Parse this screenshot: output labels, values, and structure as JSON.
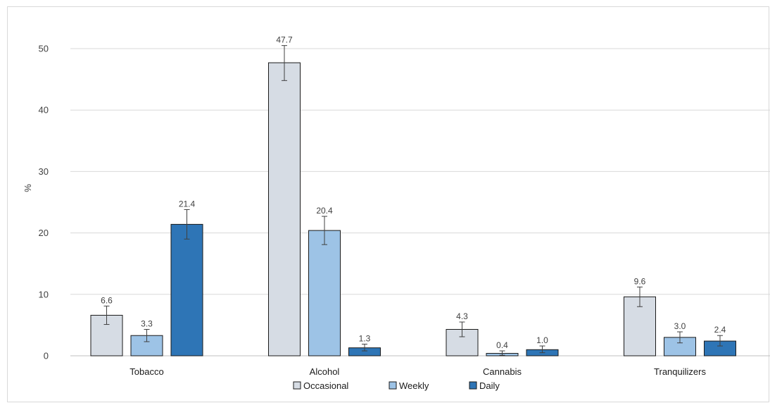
{
  "chart_data": {
    "type": "bar",
    "title": "",
    "xlabel": "",
    "ylabel": "%",
    "ylim": [
      0,
      55
    ],
    "yticks": [
      0,
      10,
      20,
      30,
      40,
      50
    ],
    "grid": true,
    "legend_position": "bottom",
    "categories": [
      "Tobacco",
      "Alcohol",
      "Cannabis",
      "Tranquilizers"
    ],
    "series": [
      {
        "name": "Occasional",
        "color": "#d6dce4",
        "values": [
          6.6,
          47.7,
          4.3,
          9.6
        ],
        "labels": [
          "6.6",
          "47.7",
          "4.3",
          "9.6"
        ],
        "error_low": [
          5.1,
          44.8,
          3.1,
          8.0
        ],
        "error_high": [
          8.1,
          50.5,
          5.5,
          11.2
        ]
      },
      {
        "name": "Weekly",
        "color": "#9dc3e6",
        "values": [
          3.3,
          20.4,
          0.4,
          3.0
        ],
        "labels": [
          "3.3",
          "20.4",
          "0.4",
          "3.0"
        ],
        "error_low": [
          2.3,
          18.1,
          0.1,
          2.1
        ],
        "error_high": [
          4.3,
          22.7,
          0.8,
          3.9
        ]
      },
      {
        "name": "Daily",
        "color": "#2e75b6",
        "values": [
          21.4,
          1.3,
          1.0,
          2.4
        ],
        "labels": [
          "21.4",
          "1.3",
          "1.0",
          "2.4"
        ],
        "error_low": [
          19.0,
          0.8,
          0.5,
          1.6
        ],
        "error_high": [
          23.8,
          1.9,
          1.6,
          3.3
        ]
      }
    ]
  }
}
